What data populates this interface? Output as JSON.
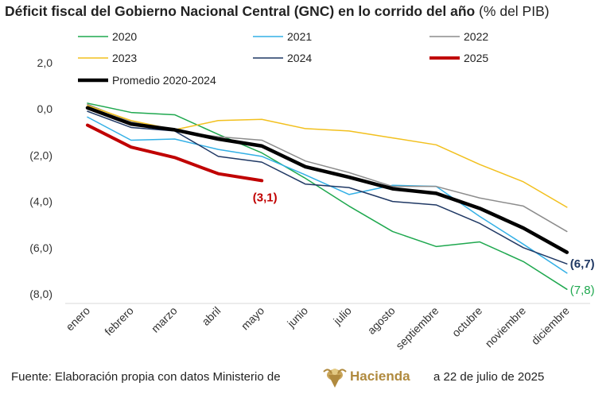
{
  "chart_data": {
    "type": "line",
    "title": "Déficit fiscal del Gobierno Nacional Central (GNC) en lo corrido del año",
    "title_suffix": "(% del PIB)",
    "categories": [
      "enero",
      "febrero",
      "marzo",
      "abril",
      "mayo",
      "junio",
      "julio",
      "agosto",
      "septiembre",
      "octubre",
      "noviembre",
      "diciembre"
    ],
    "y_ticks": [
      "2,0",
      "0,0",
      "(2,0)",
      "(4,0)",
      "(6,0)",
      "(8,0)"
    ],
    "ylim": [
      -8,
      2
    ],
    "grid": false,
    "legend_placement": "top",
    "series": [
      {
        "name": "2020",
        "color": "#1fa84f",
        "width": 1.5,
        "values": [
          0.25,
          -0.15,
          -0.25,
          -1.1,
          -1.9,
          -3.0,
          -4.2,
          -5.3,
          -5.95,
          -5.75,
          -6.6,
          -7.8
        ]
      },
      {
        "name": "2021",
        "color": "#33b0e6",
        "width": 1.5,
        "values": [
          -0.35,
          -1.35,
          -1.3,
          -1.75,
          -2.05,
          -2.85,
          -3.7,
          -3.3,
          -3.35,
          -4.65,
          -5.85,
          -7.1
        ]
      },
      {
        "name": "2022",
        "color": "#8c8c8c",
        "width": 1.5,
        "values": [
          0.2,
          -0.55,
          -0.95,
          -1.2,
          -1.35,
          -2.25,
          -2.75,
          -3.35,
          -3.35,
          -3.85,
          -4.2,
          -5.3
        ]
      },
      {
        "name": "2023",
        "color": "#f2c01e",
        "width": 1.5,
        "values": [
          0.15,
          -0.5,
          -0.9,
          -0.5,
          -0.45,
          -0.85,
          -0.95,
          -1.25,
          -1.55,
          -2.4,
          -3.15,
          -4.25
        ]
      },
      {
        "name": "2024",
        "color": "#1f3864",
        "width": 1.5,
        "values": [
          -0.1,
          -0.8,
          -0.95,
          -2.05,
          -2.3,
          -3.25,
          -3.4,
          -4.0,
          -4.15,
          -4.95,
          -6.0,
          -6.7
        ]
      },
      {
        "name": "2025",
        "color": "#c00000",
        "width": 4,
        "values": [
          -0.7,
          -1.65,
          -2.1,
          -2.8,
          -3.1,
          null,
          null,
          null,
          null,
          null,
          null,
          null
        ]
      },
      {
        "name": "Promedio 2020-2024",
        "color": "#000000",
        "width": 4.5,
        "values": [
          0.05,
          -0.65,
          -0.9,
          -1.3,
          -1.6,
          -2.5,
          -2.95,
          -3.45,
          -3.65,
          -4.3,
          -5.15,
          -6.2
        ]
      }
    ],
    "annotations": [
      {
        "text": "(3,1)",
        "series": "2025",
        "index": 4,
        "color": "#c00000"
      },
      {
        "text": "(6,7)",
        "series": "2024",
        "index": 11,
        "color": "#1f3864"
      },
      {
        "text": "(7,8)",
        "series": "2020",
        "index": 11,
        "color": "#1fa84f"
      }
    ]
  },
  "footer": {
    "source": "Fuente: Elaboración propia con datos Ministerio de",
    "logo_text": "Hacienda",
    "date": "a 22 de julio de 2025"
  }
}
